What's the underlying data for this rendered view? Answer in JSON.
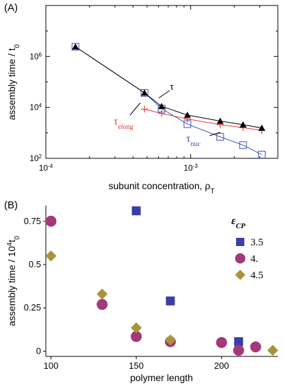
{
  "chart_data": [
    {
      "panel_label": "(A)",
      "type": "line",
      "xscale": "log",
      "yscale": "log",
      "xlim": [
        0.0001,
        0.004
      ],
      "ylim": [
        100,
        100000000
      ],
      "xlabel": "subunit concentration, ρ",
      "xlabel_sub": "T",
      "ylabel": "assembly time / t",
      "ylabel_sub": "0",
      "x_tick_labels": [
        {
          "base": "10",
          "exp": "-4",
          "value": 0.0001
        },
        {
          "base": "10",
          "exp": "-3",
          "value": 0.001
        }
      ],
      "y_tick_labels": [
        {
          "base": "10",
          "exp": "2",
          "value": 100
        },
        {
          "base": "10",
          "exp": "4",
          "value": 10000
        },
        {
          "base": "10",
          "exp": "6",
          "value": 1000000
        }
      ],
      "grid": false,
      "legend": "none",
      "series": [
        {
          "name": "τ",
          "name_sub": "",
          "color": "#000000",
          "marker": "triangle",
          "x": [
            0.00016,
            0.00048,
            0.00063,
            0.00095,
            0.0016,
            0.0023,
            0.0031
          ],
          "y": [
            2400000,
            37000,
            11000,
            5000,
            2900,
            2100,
            1550
          ]
        },
        {
          "name": "τ",
          "name_sub": "elong",
          "color": "#e53935",
          "marker": "plus",
          "x": [
            0.00048,
            0.00063,
            0.00095,
            0.0016,
            0.0023,
            0.0031
          ],
          "y": [
            8500,
            5800,
            3500,
            2100,
            1600,
            1250
          ]
        },
        {
          "name": "τ",
          "name_sub": "nuc",
          "color": "#3f51b5",
          "marker": "open-square",
          "x": [
            0.00016,
            0.00048,
            0.00063,
            0.00095,
            0.0016,
            0.0023,
            0.0031
          ],
          "y": [
            2400000,
            37000,
            9000,
            2200,
            700,
            330,
            140
          ]
        }
      ]
    },
    {
      "panel_label": "(B)",
      "type": "scatter",
      "xlim": [
        97,
        233
      ],
      "ylim": [
        -0.03,
        0.84
      ],
      "xlabel": "polymer length",
      "ylabel": "assembly time / 10",
      "ylabel_exp": "4",
      "ylabel_tail": "t",
      "ylabel_sub": "0",
      "x_ticks": [
        100,
        150,
        200
      ],
      "x_tick_labels": [
        "100",
        "150",
        "200"
      ],
      "y_ticks": [
        0,
        0.25,
        0.5,
        0.75
      ],
      "y_tick_labels": [
        "0",
        "0.25",
        "0.5",
        "0.75"
      ],
      "grid": false,
      "legend_title": "ε",
      "legend_title_sub": "CP",
      "legend": "top-right",
      "series": [
        {
          "name": "3.5",
          "color": "#3b3ea8",
          "marker": "square",
          "x": [
            150,
            170,
            210
          ],
          "y": [
            0.81,
            0.29,
            0.055
          ]
        },
        {
          "name": "4.",
          "color": "#a3387a",
          "marker": "circle",
          "x": [
            100,
            130,
            150,
            170,
            200,
            210,
            220
          ],
          "y": [
            0.75,
            0.27,
            0.085,
            0.055,
            0.05,
            0.005,
            0.025
          ]
        },
        {
          "name": "4.5",
          "color": "#a8943a",
          "marker": "diamond",
          "x": [
            100,
            130,
            150,
            170,
            230
          ],
          "y": [
            0.55,
            0.33,
            0.135,
            0.065,
            0.005
          ]
        }
      ]
    }
  ]
}
